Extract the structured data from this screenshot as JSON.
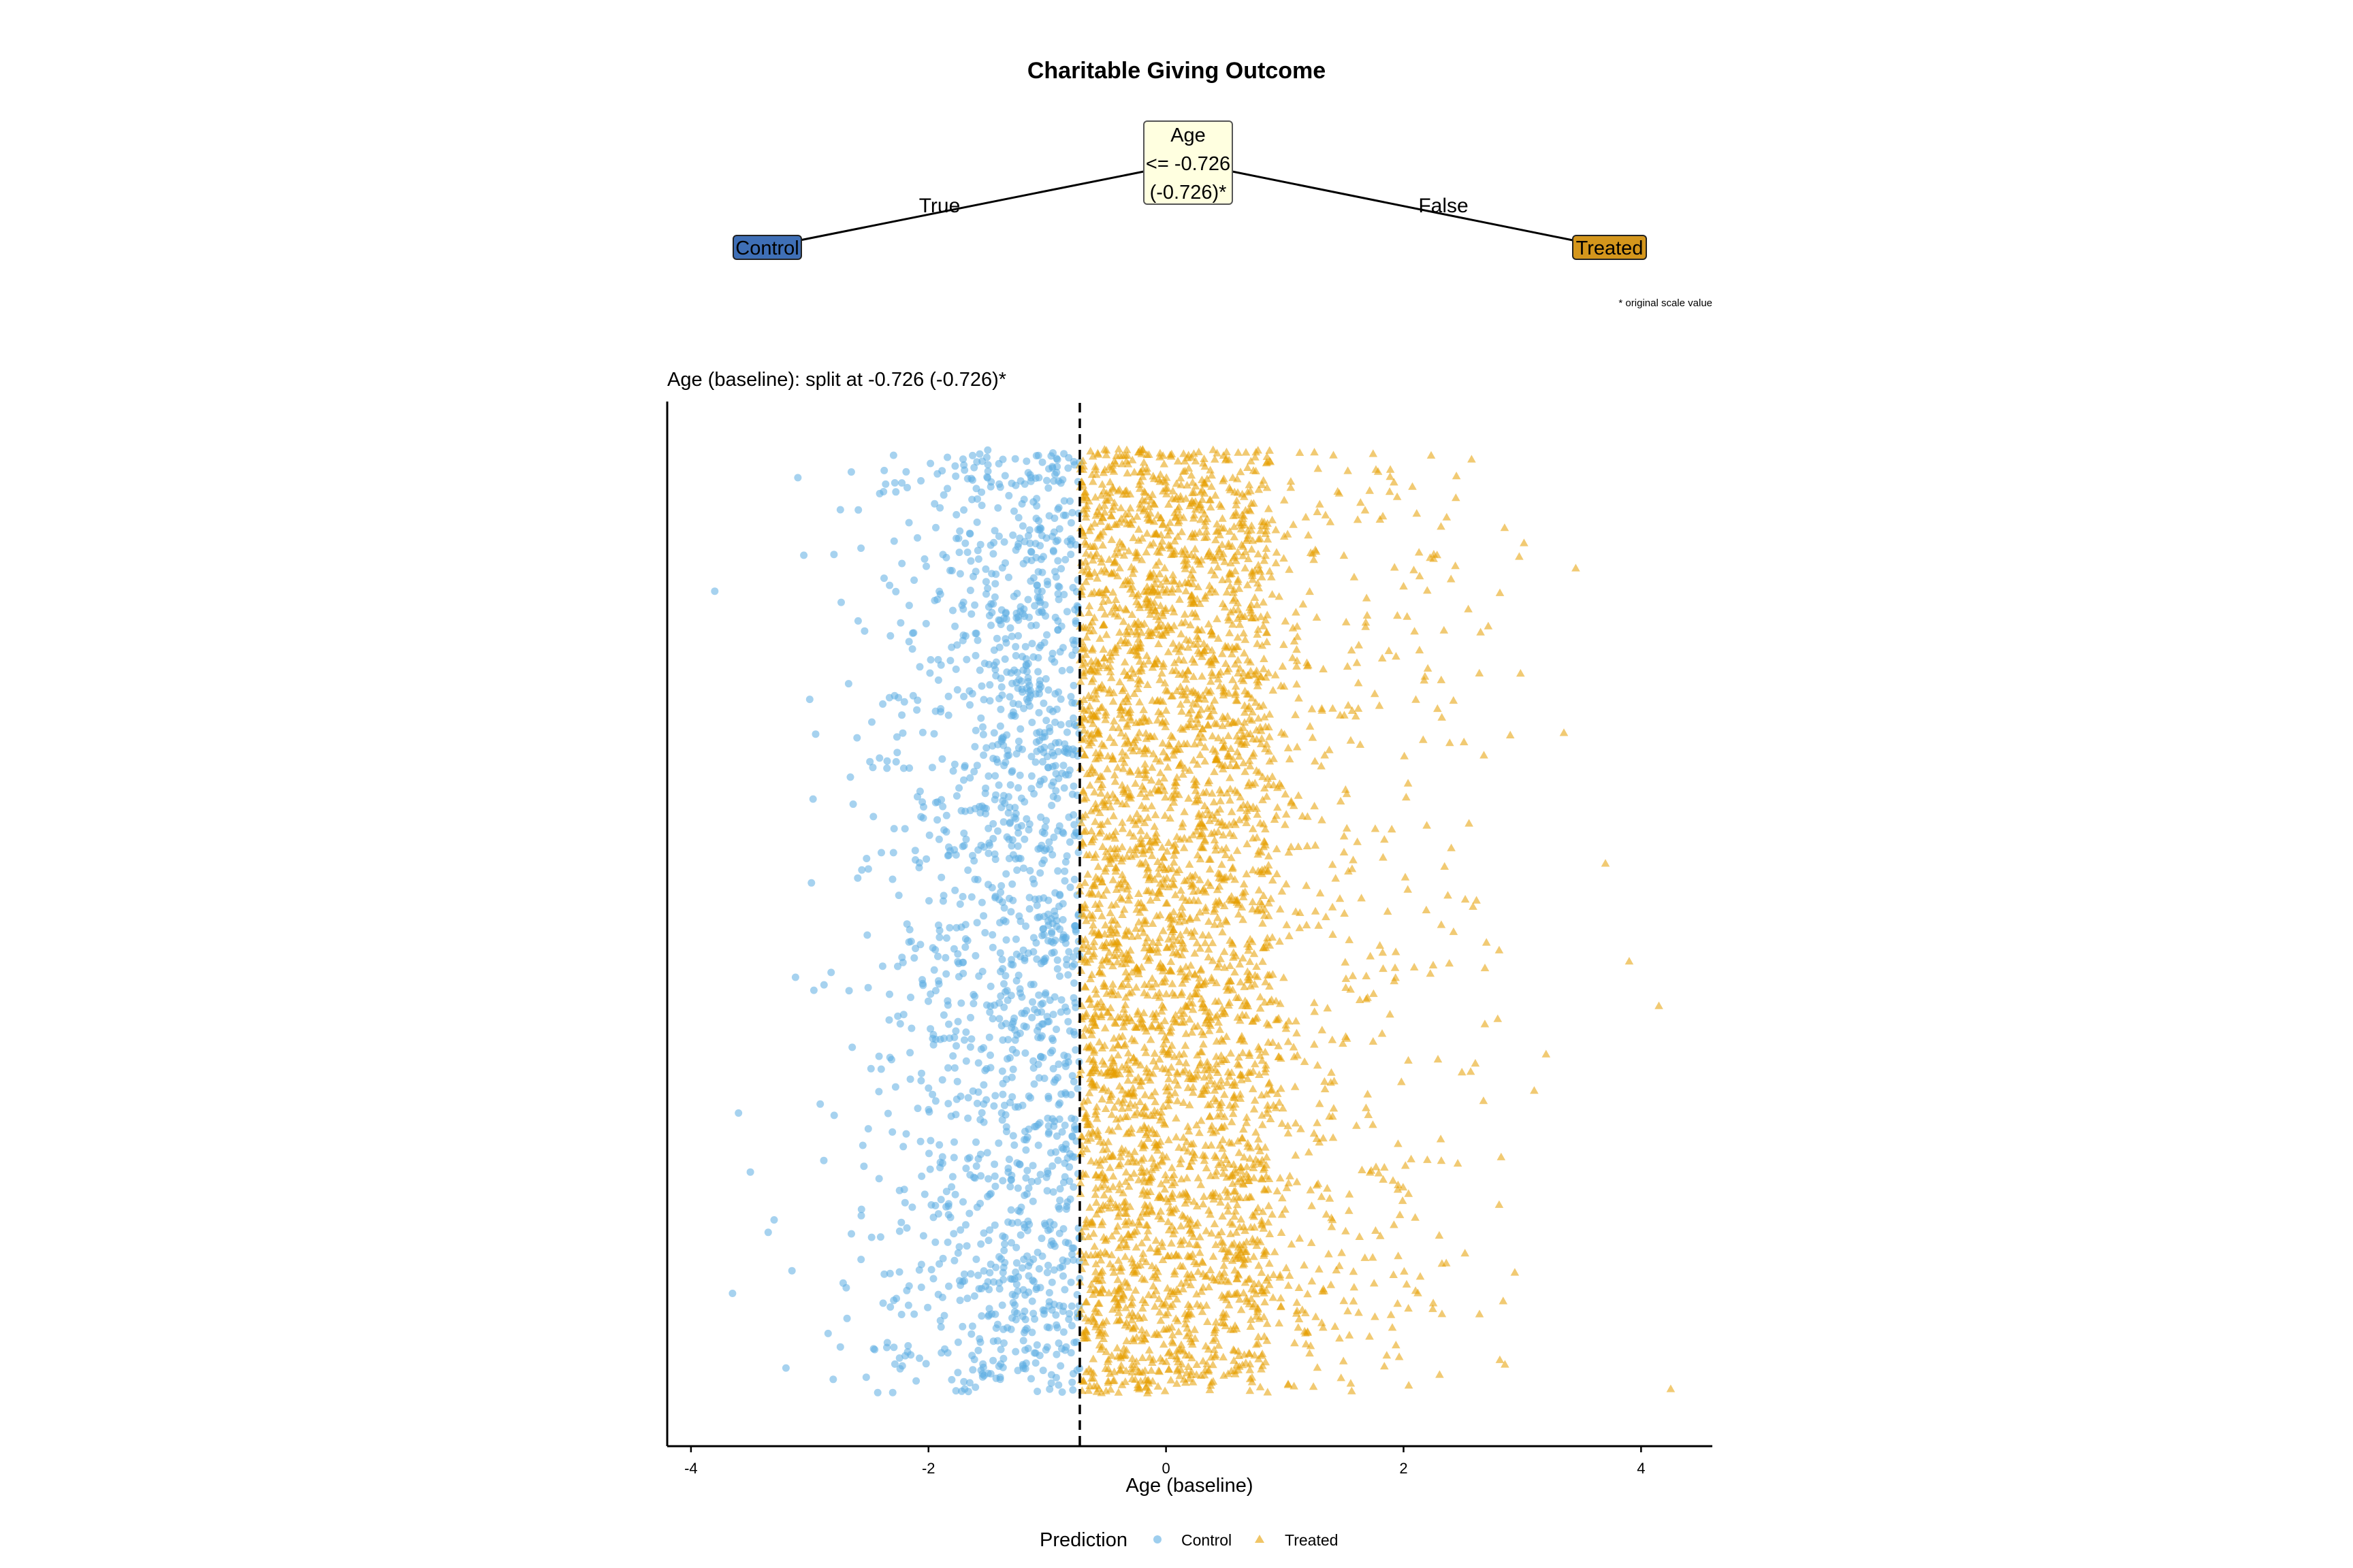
{
  "title": "Charitable Giving Outcome",
  "tree": {
    "root": {
      "line1": "Age",
      "line2": "<= -0.726",
      "line3": "(-0.726)*"
    },
    "edge_true": "True",
    "edge_false": "False",
    "leaf_left": "Control",
    "leaf_right": "Treated",
    "footnote": "* original scale value"
  },
  "colors": {
    "control": "#5DADE2",
    "treated": "#E69F00",
    "control_leaf": "#3F6FB6",
    "treated_leaf": "#D4961C",
    "root_box": "#FFFFE0"
  },
  "chart_data": {
    "type": "scatter",
    "title": "Age (baseline): split at -0.726 (-0.726)*",
    "xlabel": "Age (baseline)",
    "ylabel": "",
    "xlim": [
      -4.2,
      4.6
    ],
    "xticks": [
      -4,
      -2,
      0,
      2,
      4
    ],
    "xtick_labels": [
      "-4",
      "-2",
      "0",
      "2",
      "4"
    ],
    "split_value": -0.726,
    "y_jitter": true,
    "grid": false,
    "legend_position": "bottom",
    "legend_title": "Prediction",
    "series": [
      {
        "name": "Control",
        "marker": "circle",
        "rule": "x <= -0.726",
        "n_points": 1600,
        "x_outliers": [
          -3.8,
          -3.65,
          -3.6,
          -3.5,
          -3.35,
          -3.3,
          -3.2,
          -3.15,
          -3.12,
          -3.1,
          -3.05,
          -3.0,
          -2.95
        ]
      },
      {
        "name": "Treated",
        "marker": "triangle",
        "rule": "x > -0.726",
        "n_points": 4000,
        "x_outliers": [
          3.1,
          3.2,
          3.35,
          3.45,
          3.7,
          3.9,
          4.15,
          4.25
        ]
      }
    ]
  }
}
